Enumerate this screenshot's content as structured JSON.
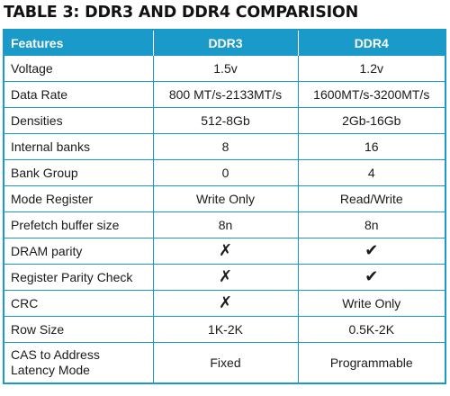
{
  "title": "TABLE 3: DDR3 AND DDR4 COMPARISION",
  "table": {
    "headers": [
      "Features",
      "DDR3",
      "DDR4"
    ],
    "rows": [
      {
        "feature": "Voltage",
        "ddr3": "1.5v",
        "ddr4": "1.2v"
      },
      {
        "feature": "Data Rate",
        "ddr3": "800 MT/s-2133MT/s",
        "ddr4": "1600MT/s-3200MT/s"
      },
      {
        "feature": "Densities",
        "ddr3": "512-8Gb",
        "ddr4": "2Gb-16Gb"
      },
      {
        "feature": "Internal banks",
        "ddr3": "8",
        "ddr4": "16"
      },
      {
        "feature": "Bank Group",
        "ddr3": "0",
        "ddr4": "4"
      },
      {
        "feature": "Mode Register",
        "ddr3": "Write Only",
        "ddr4": "Read/Write"
      },
      {
        "feature": "Prefetch buffer size",
        "ddr3": "8n",
        "ddr4": "8n"
      },
      {
        "feature": "DRAM parity",
        "ddr3": "✗",
        "ddr4": "✔"
      },
      {
        "feature": "Register Parity Check",
        "ddr3": "✗",
        "ddr4": "✔"
      },
      {
        "feature": "CRC",
        "ddr3": "✗",
        "ddr4": "Write Only"
      },
      {
        "feature": "Row Size",
        "ddr3": "1K-2K",
        "ddr4": "0.5K-2K"
      },
      {
        "feature": "CAS to Address Latency Mode",
        "ddr3": "Fixed",
        "ddr4": "Programmable"
      }
    ]
  },
  "colors": {
    "header_bg": "#1a9ac8",
    "header_text": "#ffffff",
    "grid": "#1a9ac8",
    "text": "#1a1a1a"
  }
}
